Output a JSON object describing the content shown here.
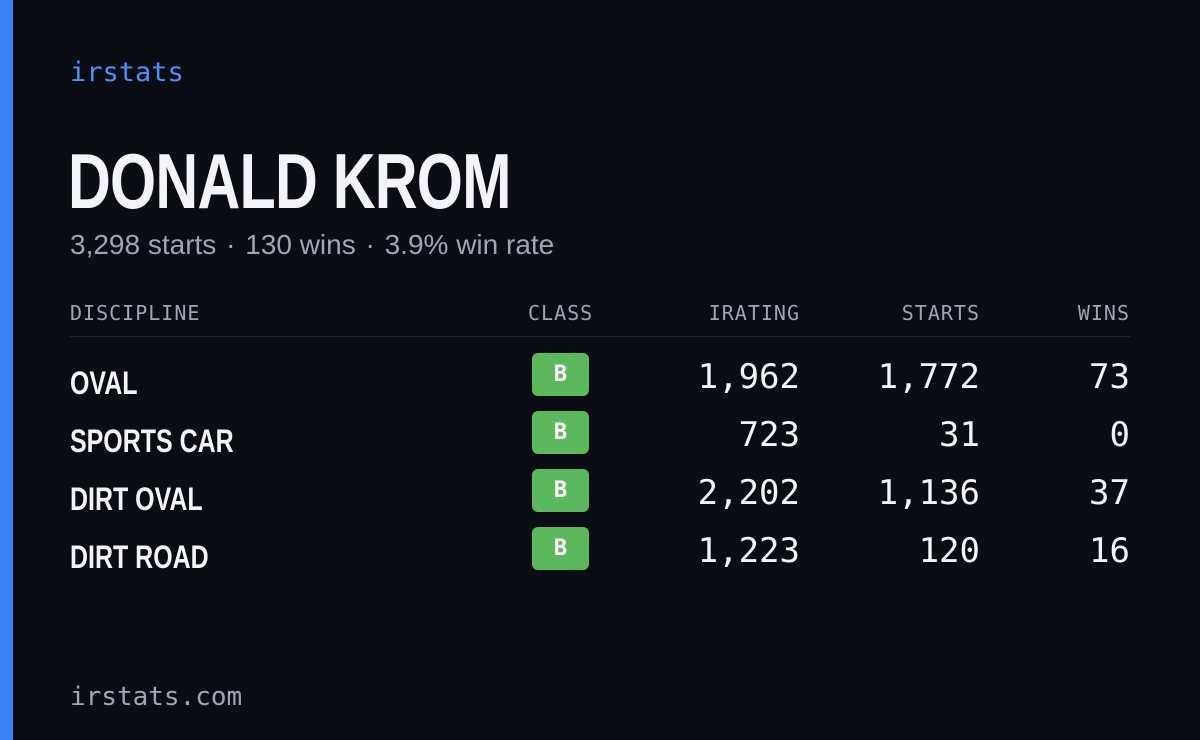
{
  "brand": "irstats",
  "driver": {
    "name": "DONALD KROM",
    "starts_text": "3,298 starts",
    "wins_text": "130 wins",
    "win_rate_text": "3.9% win rate",
    "separator": "·"
  },
  "table": {
    "headers": {
      "discipline": "DISCIPLINE",
      "class": "CLASS",
      "irating": "IRATING",
      "starts": "STARTS",
      "wins": "WINS"
    },
    "rows": [
      {
        "discipline": "OVAL",
        "class": "B",
        "irating": "1,962",
        "starts": "1,772",
        "wins": "73"
      },
      {
        "discipline": "SPORTS CAR",
        "class": "B",
        "irating": "723",
        "starts": "31",
        "wins": "0"
      },
      {
        "discipline": "DIRT OVAL",
        "class": "B",
        "irating": "2,202",
        "starts": "1,136",
        "wins": "37"
      },
      {
        "discipline": "DIRT ROAD",
        "class": "B",
        "irating": "1,223",
        "starts": "120",
        "wins": "16"
      }
    ]
  },
  "footer": "irstats.com",
  "colors": {
    "background": "#0a0d14",
    "accent": "#3b82f6",
    "class_b": "#5cb85c"
  }
}
